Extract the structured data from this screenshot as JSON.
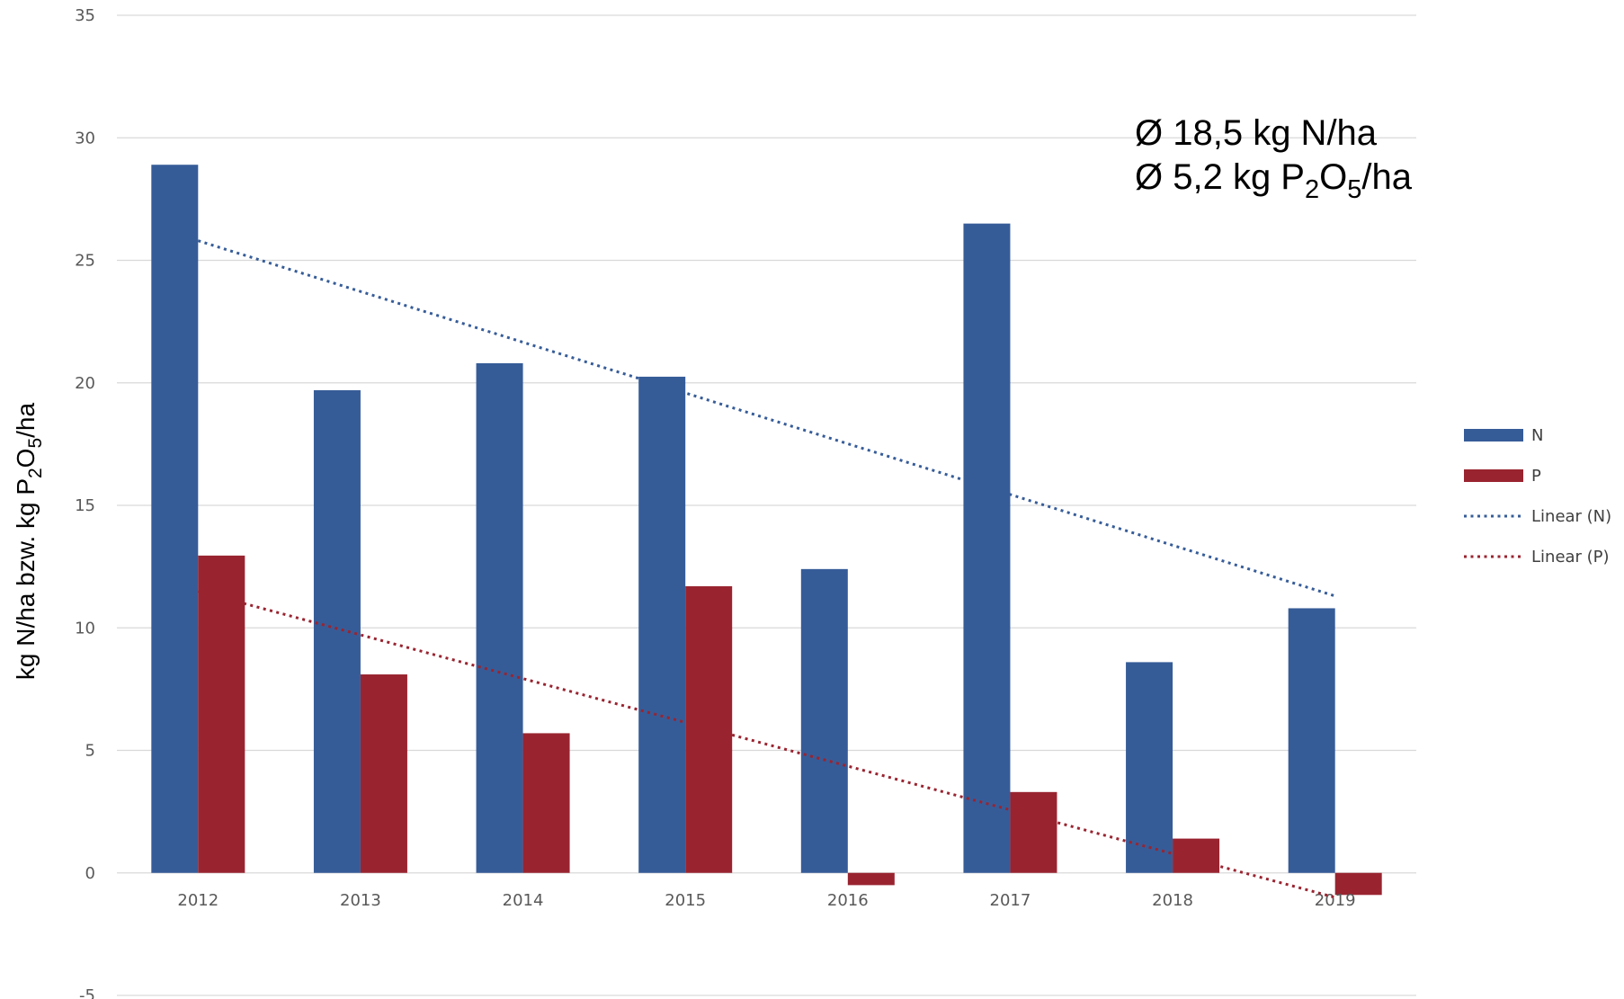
{
  "chart_data": {
    "type": "bar",
    "categories": [
      "2012",
      "2013",
      "2014",
      "2015",
      "2016",
      "2017",
      "2018",
      "2019"
    ],
    "series": [
      {
        "name": "N",
        "values": [
          28.9,
          19.7,
          20.8,
          20.25,
          12.4,
          26.5,
          8.6,
          10.8
        ],
        "color": "#365C98"
      },
      {
        "name": "P",
        "values": [
          12.95,
          8.1,
          5.7,
          11.7,
          -0.5,
          3.3,
          1.4,
          -0.9
        ],
        "color": "#992430"
      }
    ],
    "trendlines": [
      {
        "name": "Linear (N)",
        "series": "N",
        "type": "linear",
        "start": 25.8,
        "end": 11.3,
        "color": "#365C98"
      },
      {
        "name": "Linear (P)",
        "series": "P",
        "type": "linear",
        "start": 11.5,
        "end": -1.0,
        "color": "#992430"
      }
    ],
    "ylabel": {
      "prefix": "kg N/ha bzw. kg P",
      "sub1": "2",
      "mid": "O",
      "sub2": "5",
      "suffix": "/ha"
    },
    "ylim": [
      -5,
      35
    ],
    "yticks": [
      -5,
      0,
      5,
      10,
      15,
      20,
      25,
      30,
      35
    ],
    "grid": true,
    "legend_position": "right",
    "legend": [
      "N",
      "P",
      "Linear (N)",
      "Linear (P)"
    ],
    "annotations": {
      "line1": "Ø 18,5 kg N/ha",
      "line2": {
        "prefix": "Ø 5,2 kg P",
        "sub1": "2",
        "mid": "O",
        "sub2": "5",
        "suffix": "/ha"
      }
    }
  }
}
